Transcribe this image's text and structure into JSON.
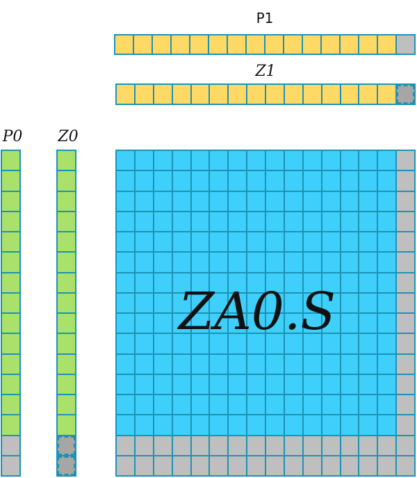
{
  "labels": {
    "p1": "P1",
    "z1": "Z1",
    "p0": "P0",
    "z0": "Z0",
    "za": "ZA0.S"
  },
  "grid": {
    "rows": 16,
    "cols": 16,
    "inactive_last_cols": 1,
    "inactive_last_rows": 2
  },
  "vectors": {
    "p1_active": 15,
    "z1_active": 15,
    "p0_active": 14,
    "z0_active": 14,
    "length": 16
  },
  "colors": {
    "p_row": "#FFD966",
    "p_col": "#A9E16B",
    "matrix": "#3ECFFB",
    "inactive": "#BFBFBF",
    "dashed_inactive": "#A6A6A6",
    "border": "#1b93b5"
  }
}
